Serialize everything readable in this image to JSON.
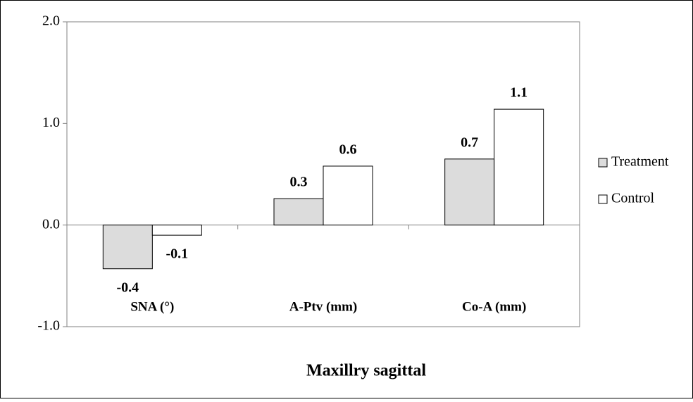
{
  "chart_data": {
    "type": "bar",
    "x_label": "Maxillry sagittal",
    "categories": [
      "SNA (°)",
      "A-Ptv (mm)",
      "Co-A (mm)"
    ],
    "series": [
      {
        "name": "Treatment",
        "color": "#dcdcdc",
        "values": [
          -0.43,
          0.26,
          0.65
        ],
        "value_labels": [
          "-0.4",
          "0.3",
          "0.7"
        ]
      },
      {
        "name": "Control",
        "color": "#ffffff",
        "values": [
          -0.1,
          0.58,
          1.14
        ],
        "value_labels": [
          "-0.1",
          "0.6",
          "1.1"
        ]
      }
    ],
    "ylim": [
      -1,
      2
    ],
    "yticks": [
      {
        "value": -1,
        "label": "-1.0"
      },
      {
        "value": 0,
        "label": "0.0"
      },
      {
        "value": 1,
        "label": "1.0"
      },
      {
        "value": 2,
        "label": "2.0"
      }
    ],
    "legend": "right"
  }
}
